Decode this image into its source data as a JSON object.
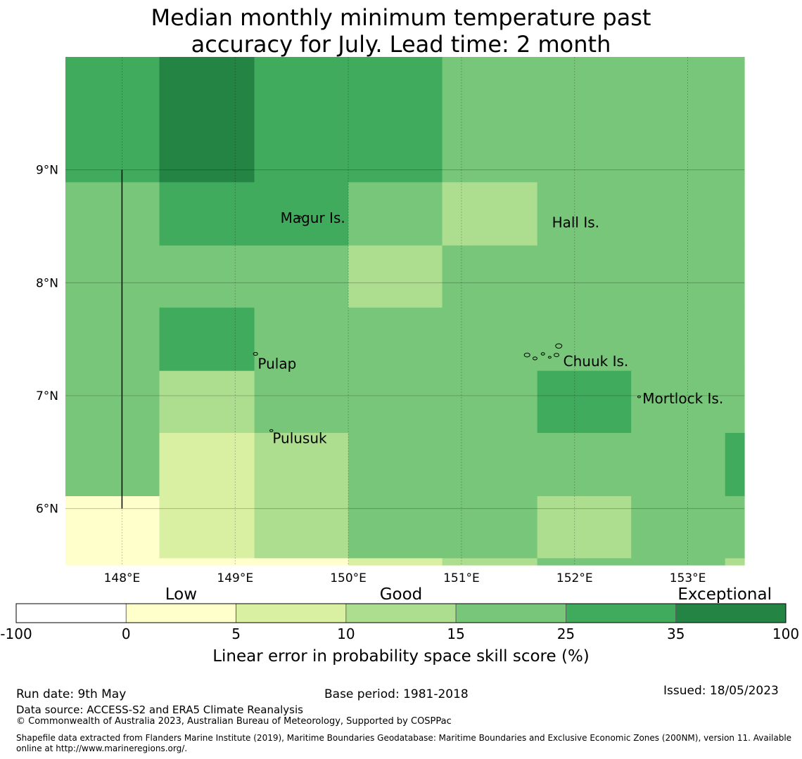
{
  "title": {
    "line1": "Median monthly minimum temperature past",
    "line2": "accuracy for July. Lead time: 2 month"
  },
  "map": {
    "lon_range": [
      147.5,
      153.5
    ],
    "lat_range": [
      5.5,
      10.0
    ],
    "lon_ticks": [
      148,
      149,
      150,
      151,
      152,
      153
    ],
    "lon_tick_labels": [
      "148°E",
      "149°E",
      "150°E",
      "151°E",
      "152°E",
      "153°E"
    ],
    "lat_ticks": [
      6,
      7,
      8,
      9
    ],
    "lat_tick_labels": [
      "6°N",
      "7°N",
      "8°N",
      "9°N"
    ],
    "grid": true,
    "meridian_line": {
      "lon": 148.0,
      "lat_from": 6.0,
      "lat_to": 9.0
    },
    "cell_rows": [
      {
        "lat_top": 10.0,
        "lat_bottom": 8.89,
        "cells": [
          {
            "lon_from": 147.5,
            "lon_to": 148.33,
            "cls": 5
          },
          {
            "lon_from": 148.33,
            "lon_to": 149.17,
            "cls": 6
          },
          {
            "lon_from": 149.17,
            "lon_to": 150.83,
            "cls": 5
          },
          {
            "lon_from": 150.83,
            "lon_to": 153.5,
            "cls": 4
          }
        ]
      },
      {
        "lat_top": 8.89,
        "lat_bottom": 8.33,
        "cells": [
          {
            "lon_from": 147.5,
            "lon_to": 148.33,
            "cls": 4
          },
          {
            "lon_from": 148.33,
            "lon_to": 150.0,
            "cls": 5
          },
          {
            "lon_from": 150.0,
            "lon_to": 150.83,
            "cls": 4
          },
          {
            "lon_from": 150.83,
            "lon_to": 151.67,
            "cls": 3
          },
          {
            "lon_from": 151.67,
            "lon_to": 153.5,
            "cls": 4
          }
        ]
      },
      {
        "lat_top": 8.33,
        "lat_bottom": 7.78,
        "cells": [
          {
            "lon_from": 147.5,
            "lon_to": 150.0,
            "cls": 4
          },
          {
            "lon_from": 150.0,
            "lon_to": 150.83,
            "cls": 3
          },
          {
            "lon_from": 150.83,
            "lon_to": 153.5,
            "cls": 4
          }
        ]
      },
      {
        "lat_top": 7.78,
        "lat_bottom": 7.22,
        "cells": [
          {
            "lon_from": 147.5,
            "lon_to": 148.33,
            "cls": 4
          },
          {
            "lon_from": 148.33,
            "lon_to": 149.17,
            "cls": 5
          },
          {
            "lon_from": 149.17,
            "lon_to": 153.5,
            "cls": 4
          }
        ]
      },
      {
        "lat_top": 7.22,
        "lat_bottom": 6.67,
        "cells": [
          {
            "lon_from": 147.5,
            "lon_to": 148.33,
            "cls": 4
          },
          {
            "lon_from": 148.33,
            "lon_to": 149.17,
            "cls": 3
          },
          {
            "lon_from": 149.17,
            "lon_to": 151.67,
            "cls": 4
          },
          {
            "lon_from": 151.67,
            "lon_to": 152.5,
            "cls": 5
          },
          {
            "lon_from": 152.5,
            "lon_to": 153.5,
            "cls": 4
          }
        ]
      },
      {
        "lat_top": 6.67,
        "lat_bottom": 6.11,
        "cells": [
          {
            "lon_from": 147.5,
            "lon_to": 148.33,
            "cls": 4
          },
          {
            "lon_from": 148.33,
            "lon_to": 149.17,
            "cls": 2
          },
          {
            "lon_from": 149.17,
            "lon_to": 150.0,
            "cls": 3
          },
          {
            "lon_from": 150.0,
            "lon_to": 153.33,
            "cls": 4
          },
          {
            "lon_from": 153.33,
            "lon_to": 153.5,
            "cls": 5
          }
        ]
      },
      {
        "lat_top": 6.11,
        "lat_bottom": 5.56,
        "cells": [
          {
            "lon_from": 147.5,
            "lon_to": 148.33,
            "cls": 1
          },
          {
            "lon_from": 148.33,
            "lon_to": 149.17,
            "cls": 2
          },
          {
            "lon_from": 149.17,
            "lon_to": 150.0,
            "cls": 3
          },
          {
            "lon_from": 150.0,
            "lon_to": 151.67,
            "cls": 4
          },
          {
            "lon_from": 151.67,
            "lon_to": 152.5,
            "cls": 3
          },
          {
            "lon_from": 152.5,
            "lon_to": 153.5,
            "cls": 4
          }
        ]
      },
      {
        "lat_top": 5.56,
        "lat_bottom": 5.5,
        "cells": [
          {
            "lon_from": 147.5,
            "lon_to": 150.0,
            "cls": 1
          },
          {
            "lon_from": 150.0,
            "lon_to": 150.83,
            "cls": 2
          },
          {
            "lon_from": 150.83,
            "lon_to": 151.67,
            "cls": 3
          },
          {
            "lon_from": 151.67,
            "lon_to": 153.33,
            "cls": 4
          },
          {
            "lon_from": 153.33,
            "lon_to": 153.5,
            "cls": 3
          }
        ]
      }
    ],
    "places": [
      {
        "name": "Magur Is.",
        "lon": 149.4,
        "lat": 8.53
      },
      {
        "name": "Hall Is.",
        "lon": 151.8,
        "lat": 8.49
      },
      {
        "name": "Pulap",
        "lon": 149.2,
        "lat": 7.24
      },
      {
        "name": "Chuuk Is.",
        "lon": 151.9,
        "lat": 7.26
      },
      {
        "name": "Mortlock Is.",
        "lon": 152.6,
        "lat": 6.93
      },
      {
        "name": "Pulusuk",
        "lon": 149.33,
        "lat": 6.58
      }
    ]
  },
  "legend": {
    "colors": [
      "#ffffff",
      "#ffffcc",
      "#d9f0a3",
      "#addd8e",
      "#78c679",
      "#41ab5d",
      "#238443"
    ],
    "edges": [
      "-100",
      "0",
      "5",
      "10",
      "15",
      "25",
      "35",
      "100"
    ],
    "categories": [
      "Low",
      "Good",
      "Exceptional"
    ],
    "label": "Linear error in probability space skill score (%)"
  },
  "footer": {
    "run_date": "Run date: 9th May",
    "base_period": "Base period: 1981-2018",
    "issued": "Issued: 18/05/2023",
    "data_source": "Data source: ACCESS-S2 and ERA5 Climate Reanalysis",
    "copyright": "© Commonwealth of Australia 2023, Australian Bureau of Meteorology, Supported by COSPPac",
    "shapefile_line1": "Shapefile data extracted from Flanders Marine Institute (2019), Maritime Boundaries Geodatabase: Maritime Boundaries and Exclusive Economic Zones (200NM), version 11. Available",
    "shapefile_line2": "online at http://www.marineregions.org/."
  }
}
